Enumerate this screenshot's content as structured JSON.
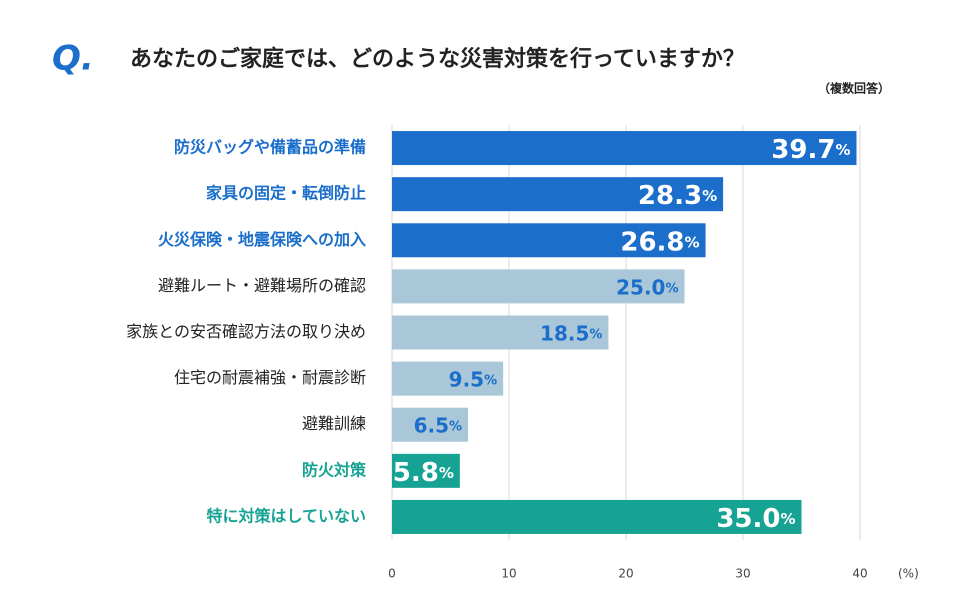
{
  "chart_data": {
    "type": "bar",
    "orientation": "horizontal",
    "question_label": "Q.",
    "title": "あなたのご家庭では、どのような災害対策を行っていますか？",
    "subtitle": "（複数回答）",
    "x_unit": "(%)",
    "categories": [
      "防災バッグや備蓄品の準備",
      "家具の固定・転倒防止",
      "火災保険・地震保険への加入",
      "避難ルート・避難場所の確認",
      "家族との安否確認方法の取り決め",
      "住宅の耐震補強・耐震診断",
      "避難訓練",
      "防火対策",
      "特に対策はしていない"
    ],
    "values": [
      39.7,
      28.3,
      26.8,
      25.0,
      18.5,
      9.5,
      6.5,
      5.8,
      35.0
    ],
    "value_labels": [
      "39.7%",
      "28.3%",
      "26.8%",
      "25.0%",
      "18.5%",
      "9.5%",
      "6.5%",
      "5.8%",
      "35.0%"
    ],
    "colors": [
      "#1b6fcb",
      "#1b6fcb",
      "#1b6fcb",
      "#a9c7d8",
      "#a9c7d8",
      "#a9c7d8",
      "#a9c7d8",
      "#17a393",
      "#17a393"
    ],
    "category_colors": [
      "#1b6fcb",
      "#1b6fcb",
      "#1b6fcb",
      "#222222",
      "#222222",
      "#222222",
      "#222222",
      "#17a393",
      "#17a393"
    ],
    "value_label_colors": [
      "#ffffff",
      "#ffffff",
      "#ffffff",
      "#1b6fcb",
      "#1b6fcb",
      "#1b6fcb",
      "#1b6fcb",
      "#ffffff",
      "#ffffff"
    ],
    "xlim": [
      0,
      40
    ],
    "xticks": [
      0,
      10,
      20,
      30,
      40
    ],
    "grid": true
  }
}
